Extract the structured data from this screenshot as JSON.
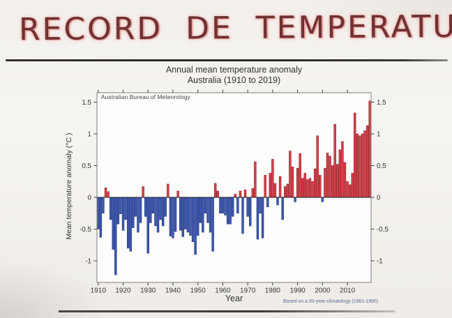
{
  "page": {
    "title": "RECORD DE TEMPERATURE",
    "title_color": "#6e3134",
    "title_highlight": "#ef9e99"
  },
  "chart": {
    "title_line1": "Annual mean temperature anomaly",
    "title_line2": "Australia (1910 to 2019)",
    "source_label": "Australian Bureau of Meteorology",
    "xlabel": "Year",
    "ylabel": "Mean temperature anomaly (°C )",
    "footnote": "Based on a 30-year climatology (1961-1990)"
  },
  "chart_data": {
    "type": "bar",
    "title": "Annual mean temperature anomaly",
    "subtitle": "Australia (1910 to 2019)",
    "xlabel": "Year",
    "ylabel": "Mean temperature anomaly (°C)",
    "x_start": 1910,
    "x_end": 2019,
    "x_ticks": [
      1910,
      1920,
      1930,
      1940,
      1950,
      1960,
      1970,
      1980,
      1990,
      2000,
      2010
    ],
    "y_ticks": [
      {
        "value": 1.5,
        "label": "1.5"
      },
      {
        "value": 1,
        "label": "1"
      },
      {
        "value": 0.5,
        "label": "0.5"
      },
      {
        "value": 0,
        "label": "0"
      },
      {
        "value": -0.5,
        "label": "-0.5"
      },
      {
        "value": -1,
        "label": "-1"
      }
    ],
    "ylim": [
      -1.35,
      1.65
    ],
    "grid": false,
    "legend": "none",
    "positive_color": "#d5404a",
    "positive_edge": "#8f1622",
    "negative_color": "#3f58ad",
    "negative_edge": "#1d3480",
    "series": [
      {
        "name": "Mean temperature anomaly (degC)",
        "values": [
          -0.5,
          -0.63,
          -0.25,
          0.15,
          0.09,
          -0.35,
          -0.82,
          -1.22,
          -0.42,
          -0.26,
          -0.52,
          -0.35,
          -0.8,
          -0.85,
          -0.48,
          -0.3,
          -0.55,
          -0.4,
          0.17,
          -0.3,
          -0.88,
          -0.4,
          -0.25,
          -0.45,
          -0.55,
          -0.35,
          -0.45,
          -0.3,
          0.21,
          -0.61,
          -0.64,
          -0.54,
          0.1,
          -0.52,
          -0.62,
          -0.5,
          -0.55,
          -0.6,
          -0.7,
          -0.9,
          -0.6,
          -0.4,
          -0.55,
          -0.25,
          -0.4,
          -0.55,
          -0.85,
          0.22,
          0.1,
          -0.25,
          -0.25,
          -0.28,
          -0.42,
          -0.42,
          -0.3,
          0.05,
          -0.25,
          0.1,
          -0.57,
          0.12,
          -0.3,
          -0.45,
          0.14,
          0.56,
          -0.66,
          -0.25,
          -0.64,
          0.35,
          -0.15,
          0.38,
          0.6,
          0.22,
          -0.12,
          0.33,
          -0.35,
          0.17,
          0.21,
          0.73,
          0.48,
          -0.07,
          0.46,
          0.69,
          0.3,
          0.38,
          0.28,
          0.3,
          0.25,
          0.45,
          0.97,
          0.35,
          -0.07,
          0.46,
          0.7,
          0.65,
          0.5,
          1.15,
          0.52,
          0.75,
          0.88,
          0.55,
          0.25,
          0.2,
          0.38,
          1.33,
          1.0,
          0.97,
          1.0,
          1.05,
          1.13,
          1.52
        ]
      }
    ]
  }
}
